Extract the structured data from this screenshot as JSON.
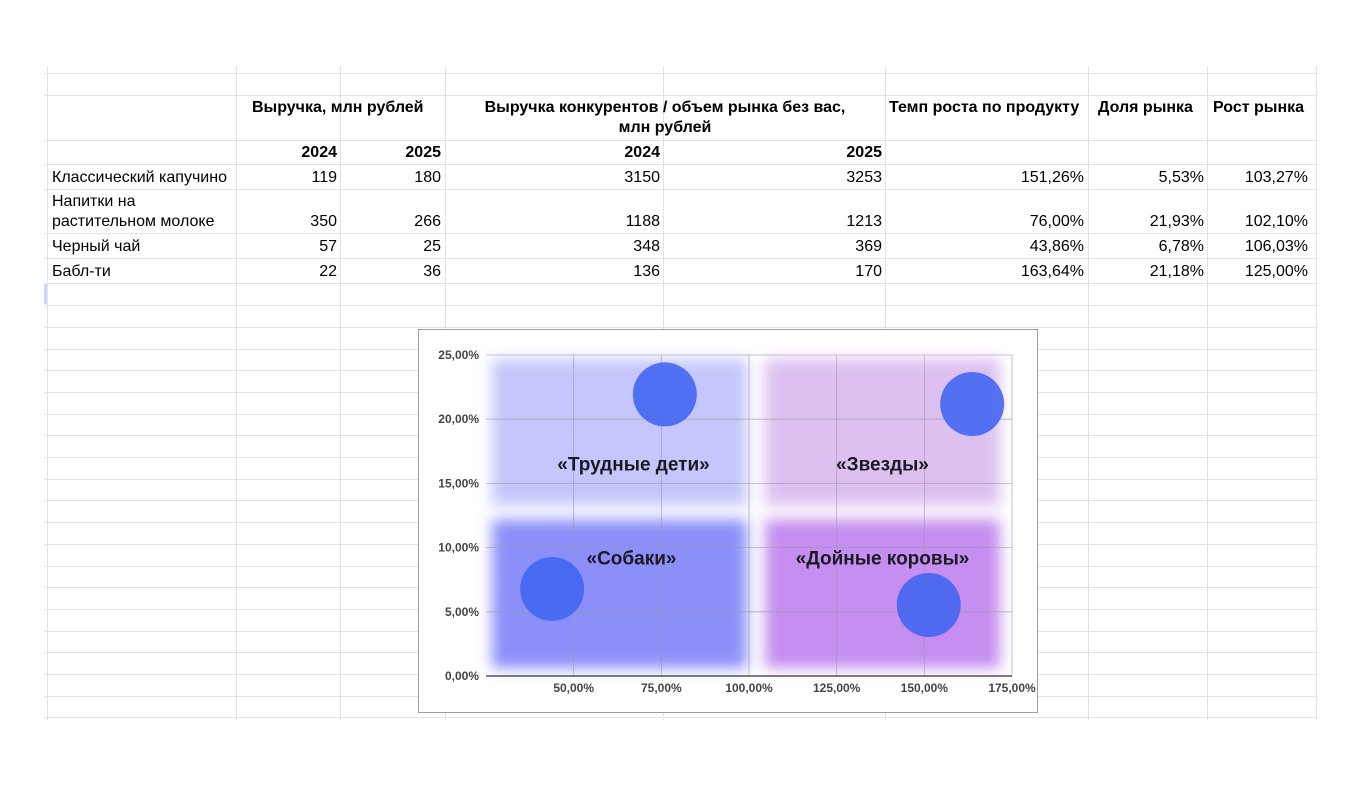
{
  "table": {
    "header": {
      "revenue": "Выручка, млн рублей",
      "competitors_line1": "Выручка конкурентов / объем рынка без вас,",
      "competitors_line2": "млн рублей",
      "growth_product": "Темп роста по продукту",
      "market_share": "Доля рынка",
      "market_growth": "Рост рынка"
    },
    "years": {
      "rev_2024": "2024",
      "rev_2025": "2025",
      "comp_2024": "2024",
      "comp_2025": "2025"
    },
    "rows": [
      {
        "name_line1": "Классический капучино",
        "name_line2": "",
        "rev_2024": "119",
        "rev_2025": "180",
        "comp_2024": "3150",
        "comp_2025": "3253",
        "growth": "151,26%",
        "share": "5,53%",
        "market_growth": "103,27%"
      },
      {
        "name_line1": "Напитки на",
        "name_line2": "растительном молоке",
        "rev_2024": "350",
        "rev_2025": "266",
        "comp_2024": "1188",
        "comp_2025": "1213",
        "growth": "76,00%",
        "share": "21,93%",
        "market_growth": "102,10%"
      },
      {
        "name_line1": "Черный чай",
        "name_line2": "",
        "rev_2024": "57",
        "rev_2025": "25",
        "comp_2024": "348",
        "comp_2025": "369",
        "growth": "43,86%",
        "share": "6,78%",
        "market_growth": "106,03%"
      },
      {
        "name_line1": "Бабл-ти",
        "name_line2": "",
        "rev_2024": "22",
        "rev_2025": "36",
        "comp_2024": "136",
        "comp_2025": "170",
        "growth": "163,64%",
        "share": "21,18%",
        "market_growth": "125,00%"
      }
    ]
  },
  "chart_data": {
    "type": "scatter",
    "title": "",
    "xlabel": "",
    "ylabel": "",
    "xlim": [
      25,
      175
    ],
    "ylim": [
      0,
      25
    ],
    "x_ticks": [
      "50,00%",
      "75,00%",
      "100,00%",
      "125,00%",
      "150,00%",
      "175,00%"
    ],
    "x_tick_values": [
      50,
      75,
      100,
      125,
      150,
      175
    ],
    "y_ticks": [
      "0,00%",
      "5,00%",
      "10,00%",
      "15,00%",
      "20,00%",
      "25,00%"
    ],
    "y_tick_values": [
      0,
      5,
      10,
      15,
      20,
      25
    ],
    "grid": true,
    "points": [
      {
        "x": 76.0,
        "y": 21.93
      },
      {
        "x": 163.64,
        "y": 21.18
      },
      {
        "x": 43.86,
        "y": 6.78
      },
      {
        "x": 151.26,
        "y": 5.53
      }
    ],
    "quadrants": [
      {
        "label": "«Трудные дети»",
        "color": "#c5c6fb"
      },
      {
        "label": "«Звезды»",
        "color": "#ddc0f0"
      },
      {
        "label": "«Собаки»",
        "color": "#8c8ff9"
      },
      {
        "label": "«Дойные коровы»",
        "color": "#c58ef0"
      }
    ],
    "bubble_color": "#3f64f0",
    "divider_x": 100
  }
}
